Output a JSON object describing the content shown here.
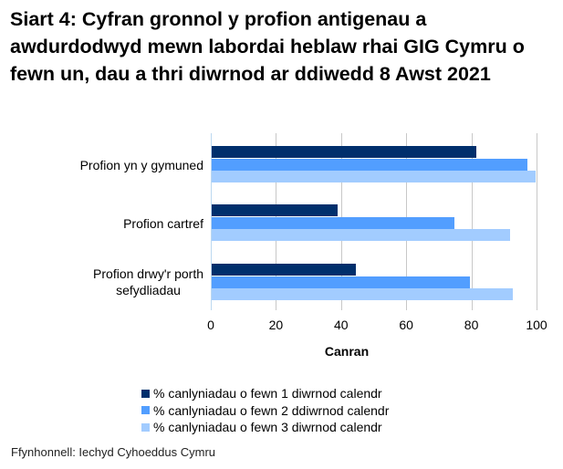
{
  "title": "Siart 4: Cyfran gronnol y profion antigenau a awdurdodwyd mewn labordai heblaw rhai GIG Cymru o fewn un, dau a thri diwrnod ar ddiwedd 8 Awst 2021",
  "source": "Ffynhonnell: Iechyd Cyhoeddus Cymru",
  "colors": {
    "series1": "#002f6c",
    "series2": "#529eff",
    "series3": "#a2ccff",
    "grid": "#c8c8c8",
    "axis": "#bcd8f0"
  },
  "chart_data": {
    "type": "bar",
    "orientation": "horizontal",
    "title": "Siart 4: Cyfran gronnol y profion antigenau a awdurdodwyd mewn labordai heblaw rhai GIG Cymru o fewn un, dau a thri diwrnod ar ddiwedd 8 Awst 2021",
    "categories": [
      "Profion yn y gymuned",
      "Profion cartref",
      "Profion drwy'r porth sefydliadau"
    ],
    "series": [
      {
        "name": "% canlyniadau o fewn 1 diwrnod calendr",
        "values": [
          81.2,
          38.6,
          44.2
        ]
      },
      {
        "name": "% canlyniadau o fewn 2 ddiwrnod calendr",
        "values": [
          96.9,
          74.4,
          79.2
        ]
      },
      {
        "name": "% canlyniadau o fewn 3 diwrnod calendr",
        "values": [
          99.4,
          91.5,
          92.3
        ]
      }
    ],
    "xlabel": "Canran",
    "ylabel": "",
    "xlim": [
      0,
      100
    ],
    "xticks": [
      0,
      20,
      40,
      60,
      80,
      100
    ],
    "grid": true,
    "legend_position": "bottom"
  },
  "labels": {
    "cat1_line1": "Profion yn y gymuned",
    "cat2_line1": "Profion cartref",
    "cat3_line1": "Profion drwy'r porth",
    "cat3_line2": "sefydliadau",
    "ticks": [
      "0",
      "20",
      "40",
      "60",
      "80",
      "100"
    ],
    "xlabel": "Canran"
  },
  "legend": [
    "% canlyniadau o fewn 1 diwrnod calendr",
    "% canlyniadau o fewn 2 ddiwrnod calendr",
    "% canlyniadau o fewn 3 diwrnod calendr"
  ]
}
